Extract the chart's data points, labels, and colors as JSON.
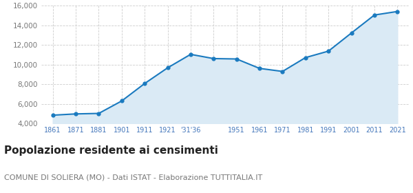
{
  "years": [
    1861,
    1871,
    1881,
    1901,
    1911,
    1921,
    1931,
    1936,
    1951,
    1961,
    1971,
    1981,
    1991,
    2001,
    2011,
    2021
  ],
  "labels": [
    "1861",
    "1871",
    "1881",
    "1901",
    "1911",
    "1921",
    "'31'36",
    "",
    "1951",
    "1961",
    "1971",
    "1981",
    "1991",
    "2001",
    "2011",
    "2021"
  ],
  "population": [
    4850,
    4980,
    5030,
    6300,
    8080,
    9680,
    11050,
    10620,
    10580,
    9620,
    9310,
    10720,
    11380,
    13230,
    15060,
    15420
  ],
  "line_color": "#1a7abf",
  "fill_color": "#daeaf5",
  "marker_color": "#1a7abf",
  "background_color": "#ffffff",
  "grid_color": "#cccccc",
  "tick_label_color": "#4477bb",
  "ylim": [
    4000,
    16000
  ],
  "yticks": [
    4000,
    6000,
    8000,
    10000,
    12000,
    14000,
    16000
  ],
  "title": "Popolazione residente ai censimenti",
  "subtitle": "COMUNE DI SOLIERA (MO) - Dati ISTAT - Elaborazione TUTTITALIA.IT",
  "title_fontsize": 11,
  "subtitle_fontsize": 8
}
